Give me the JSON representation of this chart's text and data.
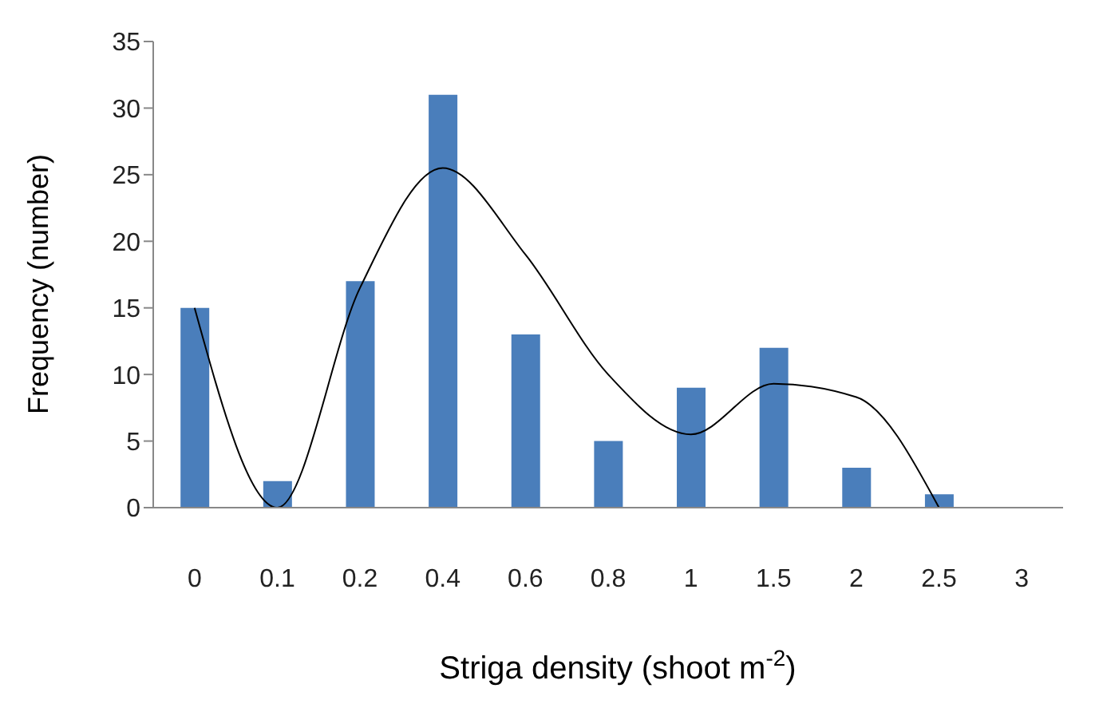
{
  "chart_data": {
    "type": "bar",
    "xlabel": "Striga density (shoot m$^{-2}$)",
    "ylabel": "Frequency (number)",
    "categories": [
      "0",
      "0.1",
      "0.2",
      "0.4",
      "0.6",
      "0.8",
      "1",
      "1.5",
      "2",
      "2.5",
      "3"
    ],
    "series": [
      {
        "color": "#4a7ebb",
        "values": [
          15,
          2,
          17,
          31,
          13,
          5,
          9,
          12,
          3,
          1,
          null
        ]
      },
      {
        "type": "line",
        "color": "#000000",
        "values": [
          15,
          0,
          16.5,
          25.5,
          19,
          10,
          5.5,
          9.3,
          8.3,
          0,
          null
        ]
      }
    ],
    "ylim": [
      0,
      35
    ],
    "yticks": [
      0,
      5,
      10,
      15,
      20,
      25,
      30,
      35
    ]
  }
}
